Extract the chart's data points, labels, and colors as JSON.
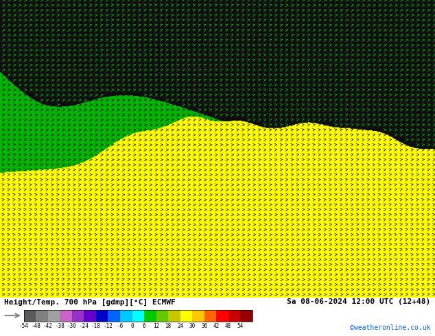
{
  "title_left": "Height/Temp. 700 hPa [gdmp][°C] ECMWF",
  "title_right": "Sa 08-06-2024 12:00 UTC (12+48)",
  "credit": "©weatheronline.co.uk",
  "colorbar_colors": [
    "#5a5a5a",
    "#808080",
    "#a0a0a0",
    "#c864c8",
    "#9632c8",
    "#6400c8",
    "#0000c8",
    "#0064ff",
    "#00c8ff",
    "#00ffff",
    "#00c800",
    "#64c800",
    "#c8c800",
    "#ffff00",
    "#ffc800",
    "#ff6400",
    "#ff0000",
    "#c80000",
    "#960000"
  ],
  "colorbar_label_vals": [
    -54,
    -48,
    -42,
    -38,
    -30,
    -24,
    -18,
    -12,
    -6,
    0,
    6,
    12,
    18,
    24,
    30,
    36,
    42,
    48,
    54
  ],
  "fig_width": 6.34,
  "fig_height": 4.9,
  "dpi": 100,
  "colorbar_label_fontsize": 5.5,
  "title_fontsize": 8,
  "credit_fontsize": 7,
  "credit_color": "#0064ff",
  "green_color": "#00cc00",
  "yellow_color": "#ffff00",
  "dark_color": "#111111",
  "barb_color_on_green": "#000000",
  "barb_color_on_yellow": "#000000",
  "barb_color_on_dark": "#00bb00"
}
